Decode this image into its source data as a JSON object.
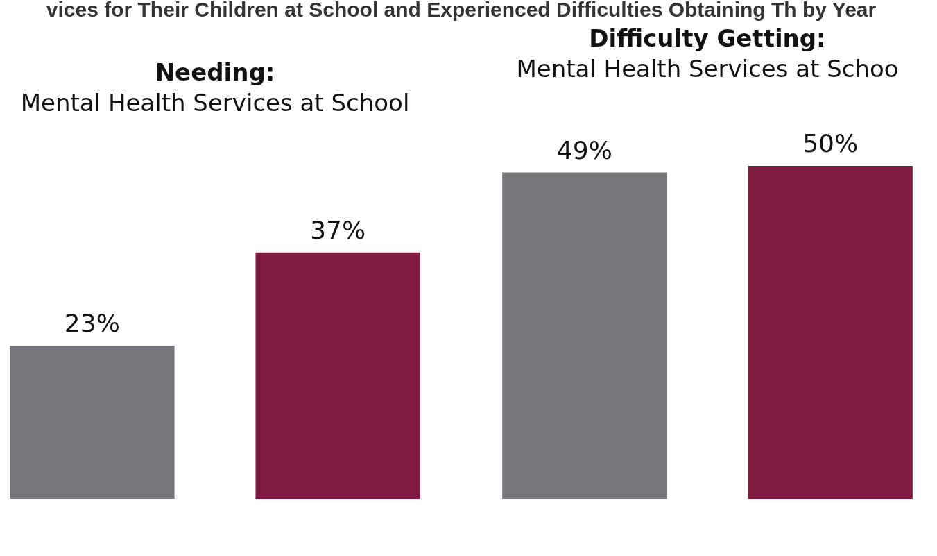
{
  "chart_data": {
    "type": "bar",
    "title": "vices for Their Children at School and Experienced Difficulties Obtaining Th\nby Year",
    "categories": [
      null,
      null,
      null,
      null
    ],
    "values": [
      23,
      37,
      49,
      50
    ],
    "value_labels": [
      "23%",
      "37%",
      "49%",
      "50%"
    ],
    "colors": [
      "#76777c",
      "#7f1b41",
      "#747578",
      "#7f1b41"
    ],
    "annotations": [
      "Needing:",
      "Mental Health Services at School",
      "Difficulty Getting:",
      "Mental Health Services at Schoo"
    ],
    "grid": false,
    "legend": false
  }
}
